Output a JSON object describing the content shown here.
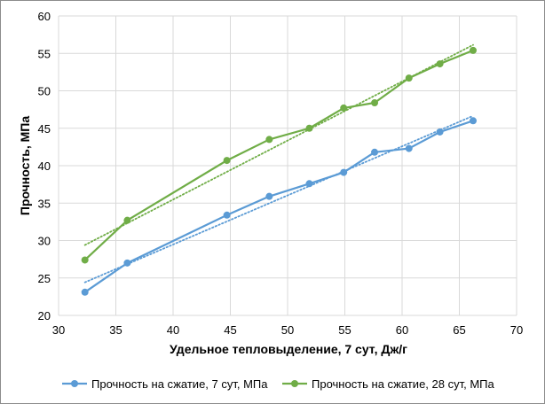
{
  "chart_data": {
    "type": "line",
    "xlabel": "Удельное тепловыделение, 7 сут, Дж/г",
    "ylabel": "Прочность, МПа",
    "xlim": [
      30,
      70
    ],
    "ylim": [
      20,
      60
    ],
    "xticks": [
      "30",
      "35",
      "40",
      "45",
      "50",
      "55",
      "60",
      "65",
      "70"
    ],
    "yticks": [
      "20",
      "25",
      "30",
      "35",
      "40",
      "45",
      "50",
      "55",
      "60"
    ],
    "grid": true,
    "legend_position": "bottom",
    "series": [
      {
        "name": "Прочность на сжатие, 7 сут, МПа",
        "color": "#5B9BD5",
        "marker": "circle",
        "trendline": "linear-dotted",
        "x": [
          32.3,
          36.0,
          44.7,
          48.4,
          51.9,
          54.9,
          57.6,
          60.6,
          63.3,
          66.2
        ],
        "y": [
          23.1,
          27.0,
          33.4,
          35.9,
          37.6,
          39.1,
          41.8,
          42.3,
          44.5,
          46.0
        ]
      },
      {
        "name": "Прочность на сжатие, 28 сут, МПа",
        "color": "#70AD47",
        "marker": "circle",
        "trendline": "linear-dotted",
        "x": [
          32.3,
          36.0,
          44.7,
          48.4,
          51.9,
          54.9,
          57.6,
          60.6,
          63.3,
          66.2
        ],
        "y": [
          27.4,
          32.7,
          40.7,
          43.5,
          45.0,
          47.7,
          48.4,
          51.7,
          53.6,
          55.4
        ]
      }
    ]
  }
}
